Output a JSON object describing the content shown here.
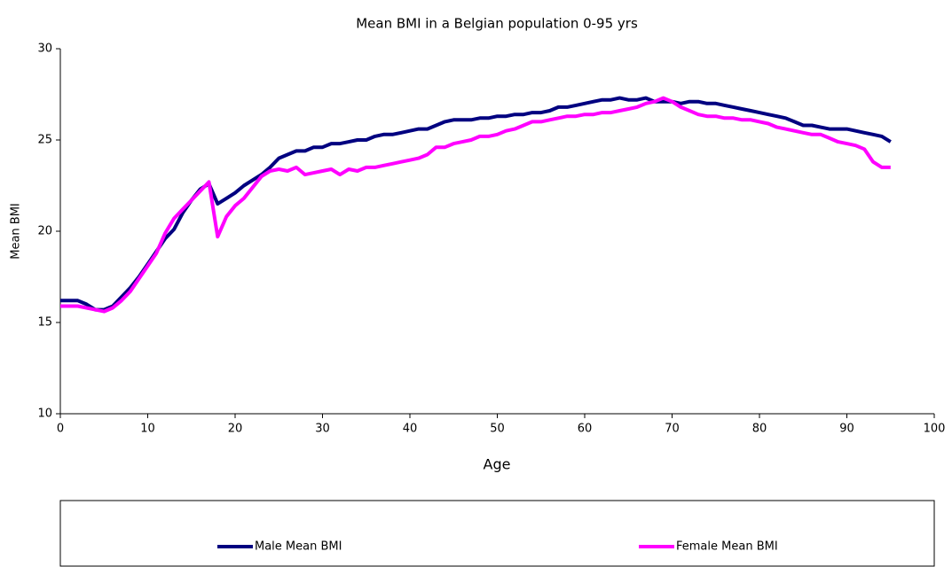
{
  "chart_data": {
    "type": "line",
    "title": "Mean BMI in a Belgian population 0-95 yrs",
    "xlabel": "Age",
    "ylabel": "Mean BMI",
    "x": [
      0,
      1,
      2,
      3,
      4,
      5,
      6,
      7,
      8,
      9,
      10,
      11,
      12,
      13,
      14,
      15,
      16,
      17,
      18,
      19,
      20,
      21,
      22,
      23,
      24,
      25,
      26,
      27,
      28,
      29,
      30,
      31,
      32,
      33,
      34,
      35,
      36,
      37,
      38,
      39,
      40,
      41,
      42,
      43,
      44,
      45,
      46,
      47,
      48,
      49,
      50,
      51,
      52,
      53,
      54,
      55,
      56,
      57,
      58,
      59,
      60,
      61,
      62,
      63,
      64,
      65,
      66,
      67,
      68,
      69,
      70,
      71,
      72,
      73,
      74,
      75,
      76,
      77,
      78,
      79,
      80,
      81,
      82,
      83,
      84,
      85,
      86,
      87,
      88,
      89,
      90,
      91,
      92,
      93,
      94,
      95
    ],
    "series": [
      {
        "name": "Male Mean BMI",
        "color": "#000080",
        "values": [
          16.2,
          16.2,
          16.2,
          16.0,
          15.7,
          15.7,
          15.9,
          16.4,
          16.9,
          17.5,
          18.2,
          18.9,
          19.6,
          20.1,
          21.0,
          21.7,
          22.3,
          22.6,
          21.5,
          21.8,
          22.1,
          22.5,
          22.8,
          23.1,
          23.5,
          24.0,
          24.2,
          24.4,
          24.4,
          24.6,
          24.6,
          24.8,
          24.8,
          24.9,
          25.0,
          25.0,
          25.2,
          25.3,
          25.3,
          25.4,
          25.5,
          25.6,
          25.6,
          25.8,
          26.0,
          26.1,
          26.1,
          26.1,
          26.2,
          26.2,
          26.3,
          26.3,
          26.4,
          26.4,
          26.5,
          26.5,
          26.6,
          26.8,
          26.8,
          26.9,
          27.0,
          27.1,
          27.2,
          27.2,
          27.3,
          27.2,
          27.2,
          27.3,
          27.1,
          27.1,
          27.1,
          27.0,
          27.1,
          27.1,
          27.0,
          27.0,
          26.9,
          26.8,
          26.7,
          26.6,
          26.5,
          26.4,
          26.3,
          26.2,
          26.0,
          25.8,
          25.8,
          25.7,
          25.6,
          25.6,
          25.6,
          25.5,
          25.4,
          25.3,
          25.2,
          24.9
        ]
      },
      {
        "name": "Female Mean BMI",
        "color": "#ff00ff",
        "values": [
          15.9,
          15.9,
          15.9,
          15.8,
          15.7,
          15.6,
          15.8,
          16.2,
          16.7,
          17.4,
          18.1,
          18.8,
          19.9,
          20.7,
          21.2,
          21.7,
          22.2,
          22.7,
          19.7,
          20.8,
          21.4,
          21.8,
          22.4,
          23.0,
          23.3,
          23.4,
          23.3,
          23.5,
          23.1,
          23.2,
          23.3,
          23.4,
          23.1,
          23.4,
          23.3,
          23.5,
          23.5,
          23.6,
          23.7,
          23.8,
          23.9,
          24.0,
          24.2,
          24.6,
          24.6,
          24.8,
          24.9,
          25.0,
          25.2,
          25.2,
          25.3,
          25.5,
          25.6,
          25.8,
          26.0,
          26.0,
          26.1,
          26.2,
          26.3,
          26.3,
          26.4,
          26.4,
          26.5,
          26.5,
          26.6,
          26.7,
          26.8,
          27.0,
          27.1,
          27.3,
          27.1,
          26.8,
          26.6,
          26.4,
          26.3,
          26.3,
          26.2,
          26.2,
          26.1,
          26.1,
          26.0,
          25.9,
          25.7,
          25.6,
          25.5,
          25.4,
          25.3,
          25.3,
          25.1,
          24.9,
          24.8,
          24.7,
          24.5,
          23.8,
          23.5,
          23.5
        ]
      }
    ],
    "xlim": [
      0,
      100
    ],
    "xticks": [
      0,
      10,
      20,
      30,
      40,
      50,
      60,
      70,
      80,
      90,
      100
    ],
    "ylim": [
      10,
      30
    ],
    "yticks": [
      10,
      15,
      20,
      25,
      30
    ],
    "grid": false,
    "legend": "bottom"
  }
}
